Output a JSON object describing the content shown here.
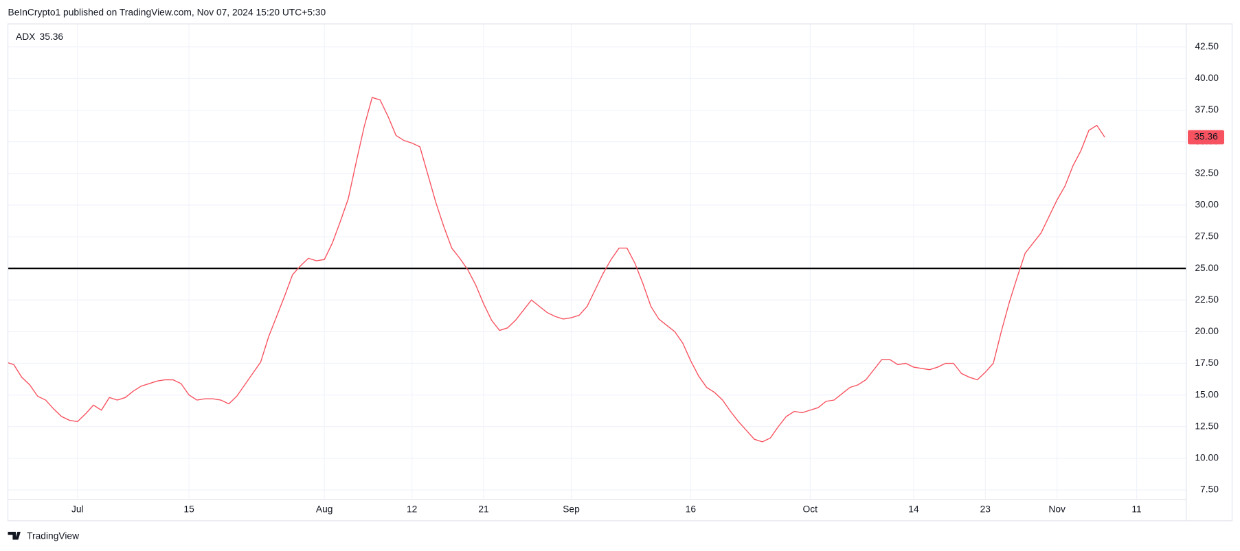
{
  "header": {
    "text": "BeInCrypto1 published on TradingView.com, Nov 07, 2024 15:20 UTC+5:30"
  },
  "footer": {
    "brand": "TradingView"
  },
  "chart_data": {
    "type": "line",
    "categories": [
      null,
      null,
      null,
      null,
      null,
      null,
      null,
      null,
      null,
      "Jul",
      null,
      null,
      null,
      null,
      null,
      null,
      null,
      null,
      null,
      null,
      null,
      null,
      null,
      "15",
      null,
      null,
      null,
      null,
      null,
      null,
      null,
      null,
      null,
      null,
      null,
      null,
      null,
      null,
      null,
      null,
      "Aug",
      null,
      null,
      null,
      null,
      null,
      null,
      null,
      null,
      null,
      null,
      "12",
      null,
      null,
      null,
      null,
      null,
      null,
      null,
      null,
      "21",
      null,
      null,
      null,
      null,
      null,
      null,
      null,
      null,
      null,
      null,
      "Sep",
      null,
      null,
      null,
      null,
      null,
      null,
      null,
      null,
      null,
      null,
      null,
      null,
      null,
      null,
      "16",
      null,
      null,
      null,
      null,
      null,
      null,
      null,
      null,
      null,
      null,
      null,
      null,
      null,
      null,
      "Oct",
      null,
      null,
      null,
      null,
      null,
      null,
      null,
      null,
      null,
      null,
      null,
      null,
      "14",
      null,
      null,
      null,
      null,
      null,
      null,
      null,
      null,
      "23",
      null,
      null,
      null,
      null,
      null,
      null,
      null,
      null,
      "Nov",
      null,
      null,
      null,
      null,
      null,
      null,
      null,
      null,
      null,
      "11",
      null,
      null,
      null,
      null,
      null,
      null
    ],
    "series": [
      {
        "name": "ADX",
        "color": "#f7525f",
        "values": [
          17.6,
          17.4,
          16.4,
          15.8,
          14.9,
          14.6,
          13.9,
          13.3,
          13.0,
          12.9,
          13.5,
          14.2,
          13.8,
          14.8,
          14.6,
          14.8,
          15.3,
          15.7,
          15.9,
          16.1,
          16.2,
          16.2,
          15.9,
          15.0,
          14.6,
          14.7,
          14.7,
          14.6,
          14.3,
          14.9,
          15.8,
          16.7,
          17.6,
          19.6,
          21.2,
          22.8,
          24.5,
          25.2,
          25.8,
          25.6,
          25.7,
          27.0,
          28.7,
          30.5,
          33.4,
          36.2,
          38.5,
          38.3,
          37.0,
          35.5,
          35.1,
          34.9,
          34.6,
          32.4,
          30.2,
          28.3,
          26.6,
          25.8,
          24.9,
          23.7,
          22.2,
          20.9,
          20.1,
          20.3,
          20.9,
          21.7,
          22.5,
          22.0,
          21.5,
          21.2,
          21.0,
          21.1,
          21.3,
          22.0,
          23.3,
          24.6,
          25.7,
          26.6,
          26.6,
          25.4,
          23.8,
          22.0,
          21.0,
          20.5,
          20.0,
          19.1,
          17.7,
          16.5,
          15.6,
          15.2,
          14.6,
          13.7,
          12.9,
          12.2,
          11.5,
          11.3,
          11.6,
          12.5,
          13.3,
          13.7,
          13.6,
          13.8,
          14.0,
          14.5,
          14.6,
          15.1,
          15.6,
          15.8,
          16.2,
          17.0,
          17.8,
          17.8,
          17.4,
          17.5,
          17.2,
          17.1,
          17.0,
          17.2,
          17.5,
          17.5,
          16.7,
          16.4,
          16.2,
          16.8,
          17.5,
          20.0,
          22.3,
          24.3,
          26.2,
          27.0,
          27.8,
          29.1,
          30.4,
          31.5,
          33.1,
          34.3,
          35.9,
          36.3,
          35.36,
          null,
          null,
          null,
          null,
          null,
          null,
          null,
          null,
          null,
          null
        ]
      }
    ],
    "reference_line": 25,
    "ylim": [
      6.75,
      44.31
    ],
    "yticks": [
      {
        "value": 7.5,
        "label": "7.50"
      },
      {
        "value": 10,
        "label": "10.00"
      },
      {
        "value": 12.5,
        "label": "12.50"
      },
      {
        "value": 15,
        "label": "15.00"
      },
      {
        "value": 17.5,
        "label": "17.50"
      },
      {
        "value": 20,
        "label": "20.00"
      },
      {
        "value": 22.5,
        "label": "22.50"
      },
      {
        "value": 25,
        "label": "25.00"
      },
      {
        "value": 27.5,
        "label": "27.50"
      },
      {
        "value": 30,
        "label": "30.00"
      },
      {
        "value": 32.5,
        "label": "32.50"
      },
      {
        "value": 35,
        "label": "35.00"
      },
      {
        "value": 37.5,
        "label": "37.50"
      },
      {
        "value": 40,
        "label": "40.00"
      },
      {
        "value": 42.5,
        "label": "42.50"
      }
    ],
    "grid": true
  }
}
